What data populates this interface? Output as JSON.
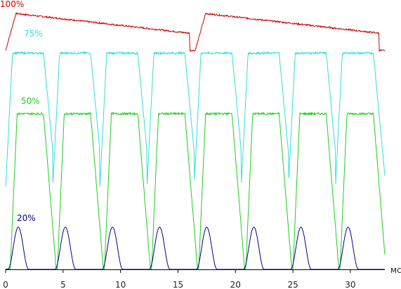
{
  "chart_data": {
    "type": "line",
    "title": "",
    "xlabel": "",
    "ylabel": "",
    "x_unit": "мс",
    "xlim": [
      0,
      33
    ],
    "x_ticks": [
      "0",
      "5",
      "10",
      "15",
      "20",
      "25",
      "30"
    ],
    "grid": false,
    "legend": "inline labels",
    "period_ms": 4.1,
    "series": [
      {
        "name": "100%",
        "color": "#cc0000",
        "waveform": "sawtooth",
        "period_ms": 16.5,
        "levels": {
          "low": 0.83,
          "high": 0.97
        },
        "edges_ms": [
          0.0,
          16.5,
          33.0
        ]
      },
      {
        "name": "75%",
        "color": "#33dddd",
        "waveform": "pulse",
        "levels": {
          "low": 0.31,
          "high": 0.82
        },
        "pulses_ms": [
          [
            0.6,
            4.1
          ],
          [
            4.7,
            8.2
          ],
          [
            8.8,
            12.3
          ],
          [
            12.9,
            16.4
          ],
          [
            17.0,
            20.5
          ],
          [
            21.1,
            24.6
          ],
          [
            25.2,
            28.7
          ],
          [
            29.3,
            32.8
          ]
        ]
      },
      {
        "name": "50%",
        "color": "#22cc22",
        "waveform": "pulse",
        "levels": {
          "low": 0.0,
          "high": 0.59
        },
        "pulses_ms": [
          [
            1.0,
            4.1
          ],
          [
            5.1,
            8.2
          ],
          [
            9.2,
            12.3
          ],
          [
            13.3,
            16.4
          ],
          [
            17.4,
            20.5
          ],
          [
            21.5,
            24.6
          ],
          [
            25.6,
            28.7
          ],
          [
            29.7,
            32.8
          ]
        ]
      },
      {
        "name": "20%",
        "color": "#00008b",
        "waveform": "bumps",
        "levels": {
          "low": 0.0,
          "high": 0.16
        },
        "peaks_ms": [
          1.1,
          5.2,
          9.3,
          13.4,
          17.5,
          21.6,
          25.7,
          29.8
        ]
      }
    ]
  }
}
